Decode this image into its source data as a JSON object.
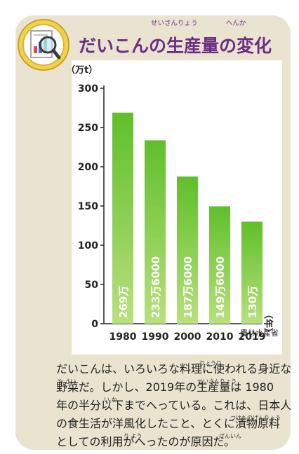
{
  "title": {
    "text": "だいこんの生産量の変化",
    "ruby_seisanryou": "せいさんりょう",
    "ruby_henka": "へんか"
  },
  "icon": "magnifier-report-icon",
  "colors": {
    "title": "#6b2f86",
    "bar_top": "#5fbf2a",
    "bar_bottom": "#b9e07e",
    "card_bg": "#e9e3cf"
  },
  "chart_data": {
    "type": "bar",
    "categories": [
      "1980",
      "1990",
      "2000",
      "2010",
      "2019"
    ],
    "values": [
      269,
      233.6,
      187.6,
      149.6,
      130
    ],
    "value_labels": [
      "269万",
      "233万6000",
      "187万6000",
      "149万6000",
      "130万"
    ],
    "ylabel": "（万t）",
    "xlabel": "（年）",
    "ylim": [
      0,
      300
    ],
    "yticks": [
      "0",
      "50",
      "100",
      "150",
      "200",
      "250",
      "300"
    ],
    "source": "農林水産省",
    "grid": false
  },
  "body": {
    "lines": [
      "だいこんは、いろいろな料理に使われる身近な",
      "野菜だ。しかし、2019年の生産量は 1980",
      "年の半分以下までへっている。これは、日本人",
      "の食生活が洋風化したこと、とくに漬物原料",
      "としての利用がへったのが原因だ。"
    ],
    "ruby": {
      "ryouri": "りょうり",
      "yasai": "や さい",
      "seisanryou": "せいさんりょう",
      "ika": "い か",
      "tsukemonogenryou": "つけものげんりょう",
      "riyou": "り よう",
      "genin": "げんいん"
    }
  }
}
